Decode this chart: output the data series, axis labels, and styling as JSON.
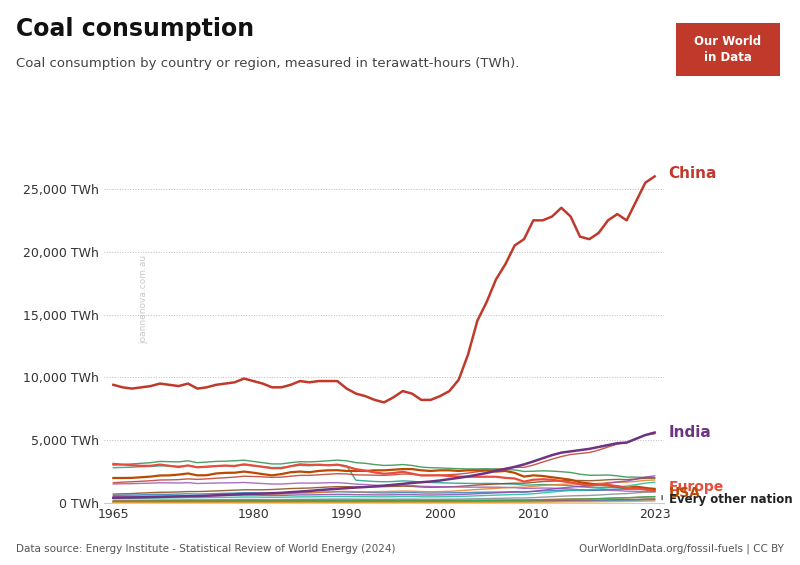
{
  "title": "Coal consumption",
  "subtitle": "Coal consumption by country or region, measured in terawatt-hours (TWh).",
  "years": [
    1965,
    1966,
    1967,
    1968,
    1969,
    1970,
    1971,
    1972,
    1973,
    1974,
    1975,
    1976,
    1977,
    1978,
    1979,
    1980,
    1981,
    1982,
    1983,
    1984,
    1985,
    1986,
    1987,
    1988,
    1989,
    1990,
    1991,
    1992,
    1993,
    1994,
    1995,
    1996,
    1997,
    1998,
    1999,
    2000,
    2001,
    2002,
    2003,
    2004,
    2005,
    2006,
    2007,
    2008,
    2009,
    2010,
    2011,
    2012,
    2013,
    2014,
    2015,
    2016,
    2017,
    2018,
    2019,
    2020,
    2021,
    2022,
    2023
  ],
  "china": [
    9400,
    9200,
    9100,
    9200,
    9300,
    9500,
    9400,
    9300,
    9500,
    9100,
    9200,
    9400,
    9500,
    9600,
    9900,
    9700,
    9500,
    9200,
    9200,
    9400,
    9700,
    9600,
    9700,
    9700,
    9700,
    9100,
    8700,
    8500,
    8200,
    8000,
    8400,
    8900,
    8700,
    8200,
    8200,
    8500,
    8900,
    9800,
    11800,
    14500,
    16000,
    17800,
    19000,
    20500,
    21000,
    22500,
    22500,
    22800,
    23500,
    22800,
    21200,
    21000,
    21500,
    22500,
    23000,
    22500,
    24000,
    25500,
    26000
  ],
  "india": [
    400,
    415,
    425,
    440,
    455,
    470,
    490,
    510,
    530,
    540,
    570,
    600,
    635,
    670,
    700,
    720,
    745,
    770,
    800,
    850,
    900,
    950,
    1010,
    1070,
    1120,
    1170,
    1220,
    1260,
    1310,
    1370,
    1440,
    1510,
    1590,
    1640,
    1700,
    1780,
    1890,
    1990,
    2100,
    2240,
    2380,
    2550,
    2700,
    2870,
    3060,
    3300,
    3550,
    3800,
    4000,
    4100,
    4200,
    4300,
    4450,
    4600,
    4750,
    4800,
    5100,
    5400,
    5600
  ],
  "europe": [
    3100,
    3050,
    3000,
    2950,
    2950,
    3050,
    2950,
    2850,
    2980,
    2830,
    2880,
    2930,
    2970,
    2930,
    3070,
    2970,
    2870,
    2760,
    2760,
    2920,
    3070,
    3020,
    3040,
    2990,
    3040,
    2890,
    2680,
    2570,
    2420,
    2320,
    2370,
    2480,
    2330,
    2180,
    2190,
    2190,
    2140,
    2090,
    2080,
    2080,
    2080,
    2080,
    1990,
    1940,
    1690,
    1840,
    1880,
    1840,
    1730,
    1630,
    1480,
    1380,
    1430,
    1430,
    1330,
    1190,
    1150,
    1060,
    950
  ],
  "usa": [
    1980,
    1980,
    1990,
    2040,
    2090,
    2180,
    2190,
    2250,
    2340,
    2190,
    2200,
    2340,
    2390,
    2400,
    2490,
    2400,
    2290,
    2190,
    2290,
    2440,
    2490,
    2440,
    2540,
    2590,
    2600,
    2540,
    2540,
    2540,
    2590,
    2590,
    2640,
    2690,
    2690,
    2590,
    2540,
    2590,
    2590,
    2540,
    2590,
    2590,
    2590,
    2490,
    2540,
    2390,
    2090,
    2190,
    2140,
    2040,
    1940,
    1840,
    1640,
    1540,
    1440,
    1390,
    1290,
    1190,
    1290,
    1190,
    1090
  ],
  "other_nations": [
    {
      "color": "#2d8e4a",
      "data": [
        3000,
        3050,
        3100,
        3150,
        3200,
        3300,
        3280,
        3260,
        3350,
        3200,
        3250,
        3300,
        3320,
        3350,
        3400,
        3300,
        3200,
        3100,
        3100,
        3200,
        3280,
        3260,
        3300,
        3350,
        3400,
        3350,
        3200,
        3150,
        3050,
        2980,
        3000,
        3050,
        2980,
        2850,
        2800,
        2780,
        2750,
        2720,
        2700,
        2700,
        2720,
        2700,
        2650,
        2620,
        2500,
        2520,
        2550,
        2530,
        2480,
        2420,
        2280,
        2200,
        2200,
        2220,
        2150,
        2050,
        2050,
        2020,
        1980
      ]
    },
    {
      "color": "#17a085",
      "data": [
        2800,
        2820,
        2840,
        2880,
        2900,
        2950,
        2930,
        2910,
        2970,
        2840,
        2880,
        2920,
        2940,
        2970,
        3020,
        2950,
        2880,
        2810,
        2820,
        2910,
        2980,
        2960,
        2990,
        3020,
        3050,
        2950,
        1800,
        1750,
        1700,
        1680,
        1700,
        1750,
        1720,
        1650,
        1620,
        1600,
        1580,
        1560,
        1550,
        1540,
        1550,
        1540,
        1510,
        1490,
        1410,
        1430,
        1460,
        1450,
        1410,
        1370,
        1280,
        1230,
        1230,
        1240,
        1200,
        1130,
        1130,
        1110,
        1080
      ]
    },
    {
      "color": "#8b4513",
      "data": [
        700,
        720,
        740,
        780,
        810,
        840,
        850,
        870,
        900,
        900,
        920,
        950,
        980,
        1010,
        1040,
        1040,
        1040,
        1060,
        1100,
        1140,
        1160,
        1180,
        1220,
        1260,
        1290,
        1290,
        1260,
        1270,
        1280,
        1290,
        1310,
        1330,
        1310,
        1260,
        1240,
        1250,
        1270,
        1310,
        1360,
        1420,
        1460,
        1500,
        1540,
        1570,
        1560,
        1630,
        1700,
        1730,
        1760,
        1790,
        1780,
        1760,
        1790,
        1840,
        1870,
        1850,
        1900,
        1960,
        1980
      ]
    },
    {
      "color": "#9b59b6",
      "data": [
        1500,
        1520,
        1530,
        1550,
        1570,
        1600,
        1590,
        1580,
        1610,
        1540,
        1560,
        1580,
        1590,
        1600,
        1620,
        1580,
        1540,
        1500,
        1500,
        1540,
        1580,
        1570,
        1580,
        1600,
        1610,
        1560,
        1490,
        1460,
        1410,
        1370,
        1380,
        1410,
        1380,
        1320,
        1300,
        1290,
        1280,
        1260,
        1250,
        1250,
        1250,
        1250,
        1230,
        1210,
        1150,
        1160,
        1180,
        1170,
        1140,
        1110,
        1040,
        1000,
        1000,
        1010,
        980,
        930,
        920,
        900,
        880
      ]
    },
    {
      "color": "#2980b9",
      "data": [
        600,
        610,
        620,
        640,
        660,
        680,
        680,
        700,
        720,
        700,
        720,
        740,
        760,
        780,
        810,
        800,
        780,
        760,
        760,
        790,
        820,
        820,
        840,
        860,
        880,
        870,
        840,
        830,
        810,
        790,
        800,
        830,
        820,
        790,
        780,
        790,
        800,
        810,
        820,
        840,
        850,
        860,
        870,
        890,
        870,
        910,
        950,
        980,
        1000,
        1020,
        1010,
        1010,
        1030,
        1060,
        1080,
        1080,
        1110,
        1140,
        1160
      ]
    },
    {
      "color": "#e67e22",
      "data": [
        400,
        410,
        420,
        440,
        460,
        490,
        500,
        520,
        550,
        550,
        570,
        600,
        630,
        660,
        700,
        700,
        690,
        680,
        700,
        740,
        780,
        790,
        820,
        870,
        910,
        910,
        880,
        880,
        890,
        900,
        920,
        940,
        930,
        900,
        890,
        900,
        920,
        960,
        1010,
        1070,
        1110,
        1160,
        1200,
        1240,
        1240,
        1310,
        1390,
        1430,
        1470,
        1510,
        1510,
        1510,
        1550,
        1610,
        1650,
        1650,
        1710,
        1790,
        1820
      ]
    },
    {
      "color": "#c0392b",
      "data": [
        1600,
        1650,
        1680,
        1720,
        1760,
        1820,
        1830,
        1850,
        1910,
        1870,
        1910,
        1960,
        2000,
        2050,
        2120,
        2100,
        2070,
        2030,
        2050,
        2120,
        2190,
        2190,
        2230,
        2280,
        2320,
        2300,
        2230,
        2220,
        2200,
        2190,
        2230,
        2300,
        2280,
        2200,
        2180,
        2210,
        2240,
        2290,
        2370,
        2480,
        2570,
        2660,
        2740,
        2820,
        2830,
        3010,
        3250,
        3480,
        3690,
        3850,
        3930,
        4010,
        4200,
        4450,
        4680,
        4800,
        5100,
        5400,
        5500
      ]
    },
    {
      "color": "#7f8c8d",
      "data": [
        200,
        205,
        210,
        215,
        220,
        230,
        230,
        235,
        245,
        238,
        243,
        250,
        256,
        264,
        274,
        272,
        264,
        258,
        261,
        272,
        282,
        282,
        289,
        297,
        304,
        302,
        291,
        289,
        285,
        282,
        288,
        300,
        298,
        286,
        282,
        285,
        291,
        299,
        311,
        327,
        341,
        356,
        370,
        385,
        389,
        416,
        453,
        492,
        527,
        556,
        574,
        590,
        624,
        670,
        710,
        738,
        792,
        847,
        876
      ]
    },
    {
      "color": "#1abc9c",
      "data": [
        350,
        355,
        360,
        370,
        380,
        395,
        395,
        400,
        415,
        405,
        413,
        424,
        435,
        448,
        465,
        462,
        450,
        440,
        444,
        462,
        478,
        478,
        490,
        503,
        514,
        512,
        495,
        492,
        484,
        478,
        489,
        508,
        505,
        483,
        477,
        484,
        496,
        512,
        533,
        562,
        587,
        615,
        640,
        667,
        675,
        724,
        793,
        861,
        926,
        983,
        1018,
        1052,
        1118,
        1208,
        1283,
        1340,
        1453,
        1570,
        1638
      ]
    },
    {
      "color": "#d35400",
      "data": [
        150,
        152,
        155,
        159,
        164,
        170,
        170,
        173,
        179,
        175,
        179,
        184,
        188,
        194,
        201,
        199,
        194,
        190,
        191,
        198,
        205,
        204,
        208,
        213,
        217,
        215,
        208,
        206,
        203,
        200,
        203,
        209,
        207,
        198,
        195,
        196,
        198,
        201,
        206,
        213,
        218,
        224,
        229,
        234,
        233,
        244,
        260,
        277,
        293,
        306,
        314,
        322,
        340,
        365,
        386,
        399,
        432,
        466,
        486
      ]
    },
    {
      "color": "#2c3e50",
      "data": [
        80,
        81,
        82,
        84,
        86,
        89,
        89,
        90,
        93,
        91,
        93,
        95,
        97,
        100,
        103,
        102,
        100,
        98,
        98,
        101,
        104,
        104,
        106,
        108,
        110,
        109,
        106,
        105,
        104,
        103,
        105,
        108,
        107,
        103,
        102,
        103,
        105,
        107,
        110,
        116,
        120,
        125,
        130,
        134,
        134,
        141,
        153,
        165,
        176,
        185,
        191,
        196,
        208,
        225,
        238,
        247,
        269,
        292,
        306
      ]
    },
    {
      "color": "#8e44ad",
      "data": [
        500,
        505,
        510,
        520,
        530,
        545,
        544,
        549,
        564,
        551,
        561,
        574,
        586,
        601,
        621,
        616,
        601,
        587,
        592,
        616,
        636,
        635,
        648,
        664,
        676,
        671,
        650,
        646,
        637,
        631,
        641,
        661,
        656,
        630,
        624,
        634,
        647,
        665,
        692,
        730,
        759,
        793,
        824,
        856,
        861,
        921,
        1007,
        1097,
        1183,
        1258,
        1305,
        1351,
        1443,
        1563,
        1665,
        1735,
        1893,
        2054,
        2148
      ]
    },
    {
      "color": "#27ae60",
      "data": [
        120,
        121,
        123,
        126,
        129,
        133,
        133,
        134,
        138,
        135,
        137,
        140,
        143,
        147,
        152,
        151,
        147,
        144,
        145,
        150,
        155,
        155,
        158,
        162,
        165,
        164,
        159,
        158,
        156,
        154,
        157,
        162,
        160,
        154,
        152,
        154,
        157,
        161,
        167,
        175,
        182,
        190,
        196,
        203,
        203,
        216,
        234,
        253,
        272,
        289,
        300,
        310,
        331,
        359,
        384,
        401,
        438,
        477,
        499
      ]
    },
    {
      "color": "#e74c3c",
      "data": [
        60,
        61,
        62,
        63,
        65,
        67,
        67,
        68,
        70,
        68,
        70,
        72,
        73,
        75,
        78,
        77,
        75,
        73,
        74,
        77,
        79,
        79,
        81,
        83,
        84,
        84,
        81,
        80,
        80,
        79,
        80,
        83,
        82,
        79,
        78,
        79,
        81,
        83,
        86,
        91,
        95,
        99,
        103,
        107,
        108,
        116,
        128,
        141,
        153,
        164,
        171,
        176,
        189,
        207,
        221,
        231,
        253,
        276,
        290
      ]
    },
    {
      "color": "#3498db",
      "data": [
        40,
        40,
        41,
        42,
        43,
        45,
        45,
        45,
        47,
        46,
        47,
        48,
        49,
        51,
        53,
        52,
        51,
        50,
        50,
        52,
        54,
        54,
        55,
        56,
        57,
        57,
        55,
        55,
        54,
        54,
        55,
        57,
        57,
        55,
        54,
        55,
        56,
        58,
        61,
        65,
        68,
        72,
        75,
        78,
        79,
        85,
        95,
        106,
        116,
        124,
        129,
        134,
        145,
        159,
        171,
        179,
        197,
        215,
        227
      ]
    },
    {
      "color": "#f39c12",
      "data": [
        25,
        25,
        26,
        26,
        27,
        28,
        28,
        28,
        29,
        29,
        29,
        30,
        30,
        31,
        32,
        32,
        31,
        31,
        31,
        32,
        33,
        33,
        34,
        35,
        35,
        35,
        34,
        34,
        33,
        33,
        34,
        35,
        35,
        34,
        33,
        34,
        35,
        36,
        37,
        40,
        42,
        44,
        46,
        48,
        48,
        52,
        58,
        65,
        71,
        76,
        80,
        82,
        89,
        98,
        105,
        110,
        121,
        133,
        140
      ]
    }
  ],
  "china_color": "#c0392b",
  "india_color": "#6c3483",
  "europe_color": "#e74c3c",
  "usa_color": "#ba4a00",
  "background_color": "#ffffff",
  "grid_color": "#bbbbbb",
  "ylim": [
    0,
    27000
  ],
  "yticks": [
    0,
    5000,
    10000,
    15000,
    20000,
    25000
  ],
  "ytick_labels": [
    "0 TWh",
    "5,000 TWh",
    "10,000 TWh",
    "15,000 TWh",
    "20,000 TWh",
    "25,000 TWh"
  ],
  "xticks": [
    1965,
    1980,
    1990,
    2000,
    2010,
    2023
  ],
  "datasource": "Data source: Energy Institute - Statistical Review of World Energy (2024)",
  "copyright": "OurWorldInData.org/fossil-fuels | CC BY",
  "watermark": "joannenova.com.au",
  "logo_text": "Our World\nin Data",
  "logo_bg": "#c0392b"
}
